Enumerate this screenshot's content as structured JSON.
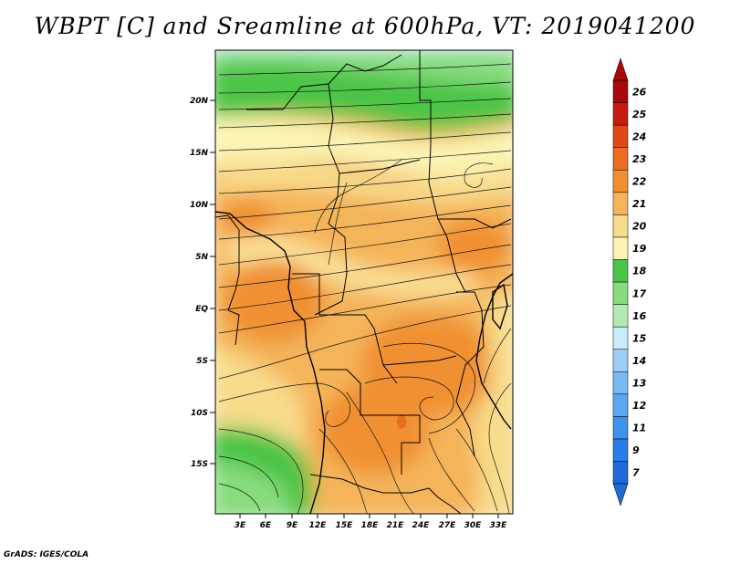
{
  "title": "WBPT [C] and Sreamline at 600hPa, VT: 2019041200",
  "credit": "GrADS: IGES/COLA",
  "map": {
    "lat_labels": [
      "20N",
      "15N",
      "10N",
      "5N",
      "EQ",
      "5S",
      "10S",
      "15S"
    ],
    "lon_labels": [
      "3E",
      "6E",
      "9E",
      "12E",
      "15E",
      "18E",
      "21E",
      "24E",
      "27E",
      "30E",
      "33E"
    ]
  },
  "colorbar": {
    "labels": [
      "7",
      "9",
      "11",
      "12",
      "13",
      "14",
      "15",
      "16",
      "17",
      "18",
      "19",
      "20",
      "21",
      "22",
      "23",
      "24",
      "25",
      "26"
    ],
    "colors": [
      "#1e6ad6",
      "#2a7de8",
      "#3c94ec",
      "#5aa8f0",
      "#7abaf2",
      "#9ccef6",
      "#c8ecfa",
      "#b4eab0",
      "#88dc7e",
      "#4cc446",
      "#fcf4b4",
      "#f8dc8c",
      "#f4b45a",
      "#f09030",
      "#ec6c20",
      "#e04818",
      "#c81c10",
      "#a80808"
    ]
  }
}
